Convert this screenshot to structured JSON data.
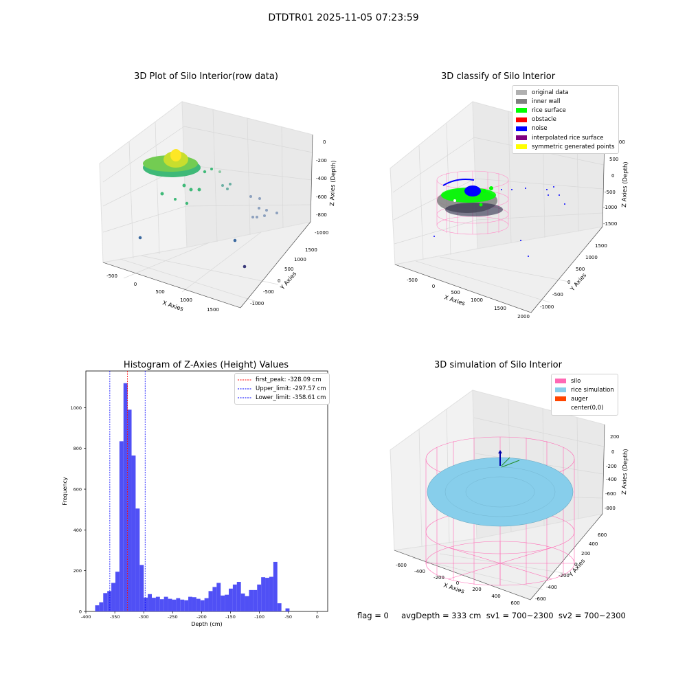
{
  "suptitle": "DTDTR01 2025-11-05 07:23:59",
  "panels": {
    "raw": {
      "title": "3D Plot of Silo Interior(row data)",
      "xlabel": "X Axies",
      "ylabel": "Y Axies",
      "zlabel": "Z Axies (Depth)",
      "xticks": [
        "-500",
        "0",
        "500",
        "1000",
        "1500"
      ],
      "yticks": [
        "-1000",
        "-500",
        "0",
        "500",
        "1000",
        "1500"
      ],
      "zticks": [
        "0",
        "-200",
        "-400",
        "-600",
        "-800",
        "-1000"
      ]
    },
    "classify": {
      "title": "3D classify of Silo Interior",
      "xlabel": "X Axies",
      "ylabel": "Y Axies",
      "zlabel": "Z Axies (Depth)",
      "xticks": [
        "-500",
        "0",
        "500",
        "1000",
        "1500",
        "2000"
      ],
      "yticks": [
        "-1000",
        "-500",
        "0",
        "500",
        "1000",
        "1500"
      ],
      "zticks": [
        "1000",
        "500",
        "0",
        "-500",
        "-1000",
        "-1500"
      ],
      "legend": [
        {
          "label": "original data",
          "color": "#b0b0b0"
        },
        {
          "label": "inner wall",
          "color": "#808080"
        },
        {
          "label": "rice surface",
          "color": "#00ff00"
        },
        {
          "label": "obstacle",
          "color": "#ff0000"
        },
        {
          "label": "noise",
          "color": "#0000ff"
        },
        {
          "label": "interpolated rice surface",
          "color": "#800080"
        },
        {
          "label": "symmetric generated points",
          "color": "#ffff00"
        }
      ]
    },
    "simulation": {
      "title": "3D simulation of Silo Interior",
      "xlabel": "X Axies",
      "ylabel": "Y Axies",
      "zlabel": "Z Axies (Depth)",
      "xticks": [
        "-600",
        "-400",
        "-200",
        "0",
        "200",
        "400",
        "600"
      ],
      "yticks": [
        "-600",
        "-400",
        "-200",
        "0",
        "200",
        "400",
        "600"
      ],
      "zticks": [
        "200",
        "0",
        "-200",
        "-400",
        "-600",
        "-800"
      ],
      "legend": [
        {
          "label": "silo",
          "color": "#ff69b4"
        },
        {
          "label": "rice simulation",
          "color": "#87ceeb"
        },
        {
          "label": "auger",
          "color": "#ff4500"
        },
        {
          "label": "center(0,0)",
          "color": ""
        }
      ]
    }
  },
  "status_line": "flag = 0     avgDepth = 333 cm  sv1 = 700~2300  sv2 = 700~2300",
  "chart_data": {
    "type": "bar",
    "title": "Histogram of Z-Axies (Height) Values",
    "xlabel": "Depth (cm)",
    "ylabel": "Frequency",
    "xlim": [
      -400,
      18
    ],
    "ylim": [
      0,
      1180
    ],
    "xticks": [
      -400,
      -350,
      -300,
      -250,
      -200,
      -150,
      -100,
      -50,
      0
    ],
    "yticks": [
      0,
      200,
      400,
      600,
      800,
      1000
    ],
    "bar_color": "#5050f5",
    "bins": [
      [
        -384,
        -377,
        30
      ],
      [
        -377,
        -370,
        45
      ],
      [
        -370,
        -363,
        90
      ],
      [
        -363,
        -356,
        100
      ],
      [
        -356,
        -349,
        140
      ],
      [
        -349,
        -342,
        195
      ],
      [
        -342,
        -335,
        835
      ],
      [
        -335,
        -328,
        1120
      ],
      [
        -328,
        -321,
        990
      ],
      [
        -321,
        -314,
        765
      ],
      [
        -314,
        -307,
        505
      ],
      [
        -307,
        -300,
        228
      ],
      [
        -300,
        -293,
        68
      ],
      [
        -293,
        -286,
        85
      ],
      [
        -286,
        -279,
        67
      ],
      [
        -279,
        -272,
        72
      ],
      [
        -272,
        -265,
        60
      ],
      [
        -265,
        -258,
        72
      ],
      [
        -258,
        -251,
        62
      ],
      [
        -251,
        -244,
        58
      ],
      [
        -244,
        -237,
        65
      ],
      [
        -237,
        -230,
        58
      ],
      [
        -230,
        -223,
        55
      ],
      [
        -223,
        -216,
        72
      ],
      [
        -216,
        -209,
        70
      ],
      [
        -209,
        -202,
        62
      ],
      [
        -202,
        -195,
        55
      ],
      [
        -195,
        -188,
        65
      ],
      [
        -188,
        -181,
        100
      ],
      [
        -181,
        -174,
        120
      ],
      [
        -174,
        -167,
        140
      ],
      [
        -167,
        -160,
        78
      ],
      [
        -160,
        -153,
        82
      ],
      [
        -153,
        -146,
        112
      ],
      [
        -146,
        -139,
        132
      ],
      [
        -139,
        -132,
        145
      ],
      [
        -132,
        -125,
        88
      ],
      [
        -125,
        -118,
        75
      ],
      [
        -118,
        -111,
        105
      ],
      [
        -111,
        -104,
        105
      ],
      [
        -104,
        -97,
        132
      ],
      [
        -97,
        -90,
        168
      ],
      [
        -90,
        -83,
        165
      ],
      [
        -83,
        -76,
        170
      ],
      [
        -76,
        -69,
        243
      ],
      [
        -69,
        -62,
        40
      ],
      [
        -62,
        -55,
        0
      ],
      [
        -55,
        -48,
        15
      ]
    ],
    "reference_lines": [
      {
        "label": "first_peak: -328.09 cm",
        "value": -328.09,
        "color": "#ff0000"
      },
      {
        "label": "Upper_limit: -297.57 cm",
        "value": -297.57,
        "color": "#0000ff"
      },
      {
        "label": "Lower_limit: -358.61 cm",
        "value": -358.61,
        "color": "#0000ff"
      }
    ]
  }
}
